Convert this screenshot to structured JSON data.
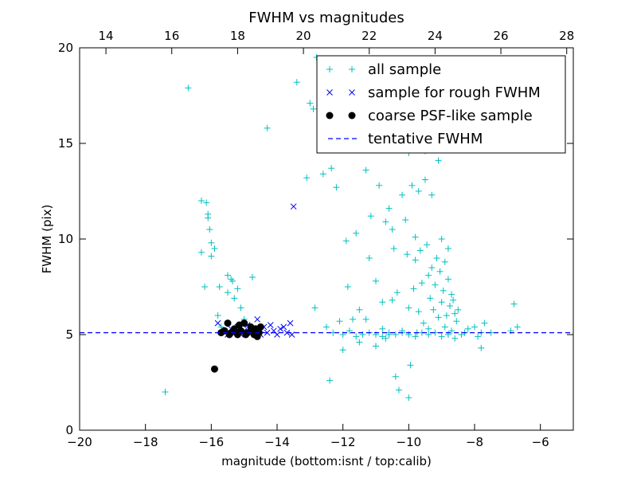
{
  "chart_data": {
    "type": "scatter",
    "title": "FWHM vs magnitudes",
    "xlabel": "magnitude (bottom:isnt / top:calib)",
    "ylabel": "FWHM (pix)",
    "xlim": [
      -20,
      -5
    ],
    "ylim": [
      0,
      20
    ],
    "x_ticks": [
      -20,
      -18,
      -16,
      -14,
      -12,
      -10,
      -8,
      -6
    ],
    "x_tick_labels": [
      "−20",
      "−18",
      "−16",
      "−14",
      "−12",
      "−10",
      "−8",
      "−6"
    ],
    "y_ticks": [
      0,
      5,
      10,
      15,
      20
    ],
    "y_tick_labels": [
      "0",
      "5",
      "10",
      "15",
      "20"
    ],
    "top_xlim": [
      13.2,
      28.2
    ],
    "top_ticks": [
      14,
      16,
      18,
      20,
      22,
      24,
      26,
      28
    ],
    "top_tick_labels": [
      "14",
      "16",
      "18",
      "20",
      "22",
      "24",
      "26",
      "28"
    ],
    "legend_position": "top-right",
    "legend": [
      {
        "label": "all sample",
        "marker": "plus",
        "color": "#00bfbf"
      },
      {
        "label": "sample for rough FWHM",
        "marker": "x",
        "color": "#0000ff"
      },
      {
        "label": "coarse PSF-like sample",
        "marker": "circle",
        "color": "#000000"
      },
      {
        "label": "tentative FWHM",
        "marker": "dashed-line",
        "color": "#0000ff"
      }
    ],
    "series": [
      {
        "name": "all sample",
        "marker": "plus",
        "color": "#00bfbf",
        "points": [
          [
            -17.4,
            2.0
          ],
          [
            -16.7,
            17.9
          ],
          [
            -16.3,
            12.0
          ],
          [
            -16.3,
            9.3
          ],
          [
            -16.2,
            7.5
          ],
          [
            -16.15,
            11.9
          ],
          [
            -16.1,
            11.3
          ],
          [
            -16.1,
            11.1
          ],
          [
            -16.05,
            10.5
          ],
          [
            -16.0,
            9.8
          ],
          [
            -16.0,
            9.1
          ],
          [
            -15.9,
            9.5
          ],
          [
            -15.8,
            6.0
          ],
          [
            -15.7,
            5.4
          ],
          [
            -15.75,
            7.5
          ],
          [
            -15.5,
            8.1
          ],
          [
            -15.5,
            7.2
          ],
          [
            -15.4,
            7.9
          ],
          [
            -15.35,
            7.8
          ],
          [
            -15.3,
            6.9
          ],
          [
            -15.2,
            7.4
          ],
          [
            -15.1,
            6.4
          ],
          [
            -15.0,
            5.8
          ],
          [
            -14.75,
            8.0
          ],
          [
            -14.3,
            15.8
          ],
          [
            -13.4,
            18.2
          ],
          [
            -13.1,
            13.2
          ],
          [
            -13.0,
            17.1
          ],
          [
            -12.9,
            16.8
          ],
          [
            -12.8,
            19.5
          ],
          [
            -12.85,
            6.4
          ],
          [
            -12.6,
            13.4
          ],
          [
            -12.5,
            5.4
          ],
          [
            -12.4,
            2.6
          ],
          [
            -12.35,
            13.7
          ],
          [
            -12.2,
            12.7
          ],
          [
            -12.1,
            5.7
          ],
          [
            -12.0,
            4.2
          ],
          [
            -11.9,
            9.9
          ],
          [
            -11.85,
            7.5
          ],
          [
            -11.7,
            5.8
          ],
          [
            -11.6,
            10.3
          ],
          [
            -11.5,
            6.3
          ],
          [
            -11.5,
            4.6
          ],
          [
            -11.3,
            13.6
          ],
          [
            -11.3,
            5.8
          ],
          [
            -11.2,
            9.0
          ],
          [
            -11.15,
            11.2
          ],
          [
            -11.0,
            7.8
          ],
          [
            -11.0,
            4.4
          ],
          [
            -10.9,
            12.8
          ],
          [
            -10.8,
            6.7
          ],
          [
            -10.8,
            5.3
          ],
          [
            -10.7,
            10.9
          ],
          [
            -10.7,
            4.8
          ],
          [
            -10.6,
            11.6
          ],
          [
            -10.6,
            5.0
          ],
          [
            -10.5,
            10.5
          ],
          [
            -10.5,
            6.8
          ],
          [
            -10.45,
            9.5
          ],
          [
            -10.4,
            2.8
          ],
          [
            -10.35,
            7.2
          ],
          [
            -10.3,
            2.1
          ],
          [
            -10.2,
            12.3
          ],
          [
            -10.2,
            5.2
          ],
          [
            -10.1,
            11.0
          ],
          [
            -10.05,
            9.2
          ],
          [
            -10.0,
            1.7
          ],
          [
            -10.0,
            14.5
          ],
          [
            -10.0,
            6.4
          ],
          [
            -9.95,
            3.4
          ],
          [
            -9.9,
            12.8
          ],
          [
            -9.85,
            7.4
          ],
          [
            -9.8,
            10.1
          ],
          [
            -9.8,
            8.9
          ],
          [
            -9.75,
            5.1
          ],
          [
            -9.7,
            12.5
          ],
          [
            -9.7,
            6.2
          ],
          [
            -9.65,
            9.4
          ],
          [
            -9.6,
            7.7
          ],
          [
            -9.55,
            5.6
          ],
          [
            -9.5,
            14.6
          ],
          [
            -9.5,
            13.1
          ],
          [
            -9.45,
            9.7
          ],
          [
            -9.4,
            8.1
          ],
          [
            -9.4,
            5.3
          ],
          [
            -9.35,
            6.9
          ],
          [
            -9.3,
            12.3
          ],
          [
            -9.3,
            8.5
          ],
          [
            -9.25,
            6.3
          ],
          [
            -9.2,
            7.6
          ],
          [
            -9.15,
            9.0
          ],
          [
            -9.1,
            14.1
          ],
          [
            -9.1,
            5.9
          ],
          [
            -9.05,
            8.3
          ],
          [
            -9.0,
            10.0
          ],
          [
            -9.0,
            6.7
          ],
          [
            -8.95,
            7.3
          ],
          [
            -8.9,
            8.8
          ],
          [
            -8.9,
            5.4
          ],
          [
            -8.85,
            6.0
          ],
          [
            -8.8,
            7.9
          ],
          [
            -8.8,
            9.5
          ],
          [
            -8.75,
            6.5
          ],
          [
            -8.7,
            7.1
          ],
          [
            -8.7,
            5.2
          ],
          [
            -8.65,
            6.8
          ],
          [
            -8.6,
            6.1
          ],
          [
            -8.6,
            4.8
          ],
          [
            -8.55,
            5.7
          ],
          [
            -8.5,
            6.3
          ],
          [
            -8.4,
            5.0
          ],
          [
            -8.3,
            5.1
          ],
          [
            -8.2,
            5.3
          ],
          [
            -8.0,
            5.4
          ],
          [
            -7.9,
            4.9
          ],
          [
            -7.8,
            4.3
          ],
          [
            -7.8,
            5.1
          ],
          [
            -7.7,
            5.6
          ],
          [
            -7.5,
            5.1
          ],
          [
            -6.9,
            5.2
          ],
          [
            -6.8,
            6.6
          ],
          [
            -6.7,
            5.4
          ],
          [
            -12.3,
            5.1
          ],
          [
            -12.0,
            5.0
          ],
          [
            -11.8,
            5.2
          ],
          [
            -11.6,
            4.9
          ],
          [
            -11.4,
            5.0
          ],
          [
            -11.2,
            5.1
          ],
          [
            -11.0,
            5.0
          ],
          [
            -10.8,
            4.9
          ],
          [
            -10.6,
            5.1
          ],
          [
            -10.4,
            5.0
          ],
          [
            -10.2,
            5.1
          ],
          [
            -10.0,
            5.0
          ],
          [
            -9.8,
            4.9
          ],
          [
            -9.6,
            5.1
          ],
          [
            -9.4,
            5.0
          ],
          [
            -9.2,
            5.1
          ],
          [
            -9.0,
            4.9
          ],
          [
            -8.8,
            5.0
          ]
        ]
      },
      {
        "name": "sample for rough FWHM",
        "marker": "x",
        "color": "#0000ff",
        "points": [
          [
            -15.8,
            5.6
          ],
          [
            -15.6,
            5.2
          ],
          [
            -15.5,
            5.0
          ],
          [
            -15.4,
            5.3
          ],
          [
            -15.3,
            5.1
          ],
          [
            -15.2,
            5.4
          ],
          [
            -15.1,
            5.0
          ],
          [
            -15.0,
            5.2
          ],
          [
            -14.9,
            5.5
          ],
          [
            -14.8,
            5.1
          ],
          [
            -14.7,
            5.3
          ],
          [
            -14.6,
            5.8
          ],
          [
            -14.5,
            5.0
          ],
          [
            -14.4,
            5.4
          ],
          [
            -14.3,
            5.1
          ],
          [
            -14.2,
            5.5
          ],
          [
            -14.1,
            5.2
          ],
          [
            -14.0,
            5.0
          ],
          [
            -13.9,
            5.3
          ],
          [
            -13.8,
            5.4
          ],
          [
            -13.7,
            5.1
          ],
          [
            -13.6,
            5.6
          ],
          [
            -13.55,
            5.0
          ],
          [
            -13.5,
            11.7
          ]
        ]
      },
      {
        "name": "coarse PSF-like sample",
        "marker": "circle",
        "color": "#000000",
        "points": [
          [
            -15.9,
            3.2
          ],
          [
            -15.7,
            5.1
          ],
          [
            -15.6,
            5.2
          ],
          [
            -15.5,
            5.6
          ],
          [
            -15.45,
            5.0
          ],
          [
            -15.4,
            5.1
          ],
          [
            -15.3,
            5.3
          ],
          [
            -15.2,
            5.0
          ],
          [
            -15.15,
            5.5
          ],
          [
            -15.1,
            5.2
          ],
          [
            -15.0,
            5.6
          ],
          [
            -14.95,
            5.0
          ],
          [
            -14.9,
            5.1
          ],
          [
            -14.8,
            5.4
          ],
          [
            -14.75,
            5.2
          ],
          [
            -14.7,
            5.0
          ],
          [
            -14.65,
            5.3
          ],
          [
            -14.6,
            4.9
          ],
          [
            -14.55,
            5.1
          ],
          [
            -14.5,
            5.4
          ]
        ]
      },
      {
        "name": "tentative FWHM",
        "marker": "dashed-line",
        "color": "#0000ff",
        "y": 5.1
      }
    ]
  }
}
